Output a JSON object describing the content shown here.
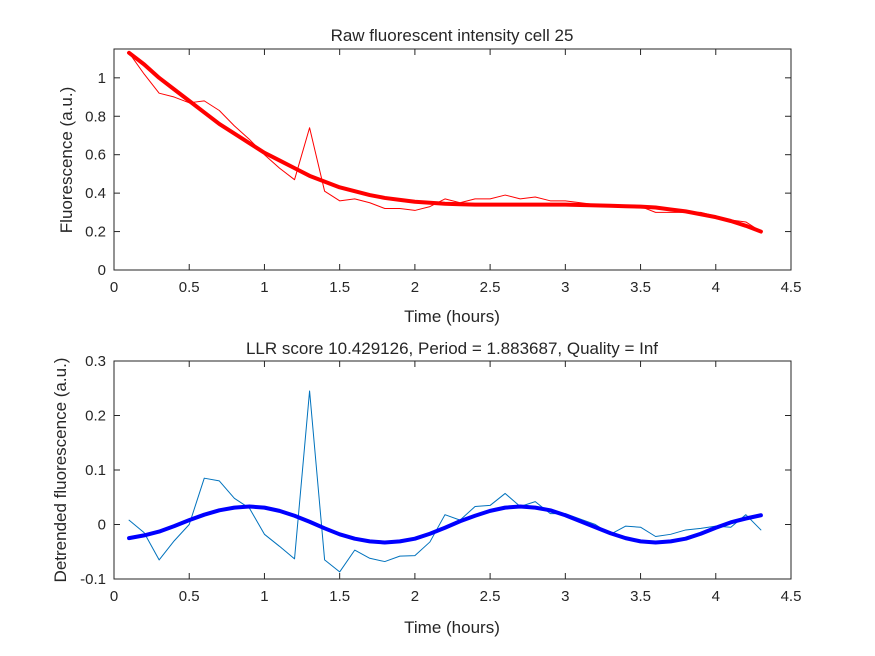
{
  "chart_data": [
    {
      "type": "line",
      "title": "Raw fluorescent intensity cell 25",
      "xlabel": "Time (hours)",
      "ylabel": "Fluorescence (a.u.)",
      "xlim": [
        0,
        4.5
      ],
      "ylim": [
        0,
        1.15
      ],
      "xticks": [
        "0",
        "0.5",
        "1",
        "1.5",
        "2",
        "2.5",
        "3",
        "3.5",
        "4",
        "4.5"
      ],
      "yticks": [
        "0",
        "0.2",
        "0.4",
        "0.6",
        "0.8",
        "1"
      ],
      "grid": false,
      "series": [
        {
          "color": "#ff0000",
          "line_width": "thin",
          "x": [
            0.1,
            0.2,
            0.3,
            0.4,
            0.5,
            0.6,
            0.7,
            0.8,
            0.9,
            1.0,
            1.1,
            1.2,
            1.3,
            1.4,
            1.5,
            1.6,
            1.7,
            1.8,
            1.9,
            2.0,
            2.1,
            2.2,
            2.3,
            2.4,
            2.5,
            2.6,
            2.7,
            2.8,
            2.9,
            3.0,
            3.1,
            3.2,
            3.3,
            3.4,
            3.5,
            3.6,
            3.7,
            3.8,
            3.9,
            4.0,
            4.1,
            4.2,
            4.3
          ],
          "y": [
            1.13,
            1.02,
            0.92,
            0.9,
            0.87,
            0.88,
            0.83,
            0.75,
            0.68,
            0.6,
            0.53,
            0.47,
            0.74,
            0.41,
            0.36,
            0.37,
            0.35,
            0.32,
            0.32,
            0.31,
            0.33,
            0.37,
            0.35,
            0.37,
            0.37,
            0.39,
            0.37,
            0.38,
            0.36,
            0.36,
            0.35,
            0.34,
            0.33,
            0.33,
            0.33,
            0.3,
            0.3,
            0.3,
            0.3,
            0.28,
            0.26,
            0.25,
            0.2
          ]
        },
        {
          "color": "#ff0000",
          "line_width": "thick",
          "x": [
            0.1,
            0.2,
            0.3,
            0.4,
            0.5,
            0.6,
            0.7,
            0.8,
            0.9,
            1.0,
            1.1,
            1.2,
            1.3,
            1.4,
            1.5,
            1.6,
            1.7,
            1.8,
            1.9,
            2.0,
            2.1,
            2.2,
            2.3,
            2.4,
            2.5,
            2.6,
            2.7,
            2.8,
            2.9,
            3.0,
            3.1,
            3.2,
            3.3,
            3.4,
            3.5,
            3.6,
            3.7,
            3.8,
            3.9,
            4.0,
            4.1,
            4.2,
            4.3
          ],
          "y": [
            1.13,
            1.07,
            1.0,
            0.94,
            0.88,
            0.82,
            0.76,
            0.71,
            0.66,
            0.61,
            0.57,
            0.53,
            0.49,
            0.46,
            0.43,
            0.41,
            0.39,
            0.375,
            0.365,
            0.355,
            0.35,
            0.345,
            0.342,
            0.34,
            0.34,
            0.34,
            0.34,
            0.34,
            0.34,
            0.34,
            0.338,
            0.336,
            0.334,
            0.332,
            0.33,
            0.325,
            0.315,
            0.305,
            0.29,
            0.275,
            0.255,
            0.23,
            0.2
          ]
        }
      ]
    },
    {
      "type": "line",
      "title": "LLR score 10.429126, Period = 1.883687, Quality = Inf",
      "xlabel": "Time (hours)",
      "ylabel": "Detrended fluorescence (a.u.)",
      "xlim": [
        0,
        4.5
      ],
      "ylim": [
        -0.1,
        0.3
      ],
      "xticks": [
        "0",
        "0.5",
        "1",
        "1.5",
        "2",
        "2.5",
        "3",
        "3.5",
        "4",
        "4.5"
      ],
      "yticks": [
        "-0.1",
        "0",
        "0.1",
        "0.2",
        "0.3"
      ],
      "grid": false,
      "series": [
        {
          "color": "#0072bd",
          "line_width": "thin",
          "x": [
            0.1,
            0.2,
            0.3,
            0.4,
            0.5,
            0.6,
            0.7,
            0.8,
            0.9,
            1.0,
            1.1,
            1.2,
            1.3,
            1.4,
            1.5,
            1.6,
            1.7,
            1.8,
            1.9,
            2.0,
            2.1,
            2.2,
            2.3,
            2.4,
            2.5,
            2.6,
            2.7,
            2.8,
            2.9,
            3.0,
            3.1,
            3.2,
            3.3,
            3.4,
            3.5,
            3.6,
            3.7,
            3.8,
            3.9,
            4.0,
            4.1,
            4.2,
            4.3
          ],
          "y": [
            0.008,
            -0.015,
            -0.065,
            -0.03,
            0.0,
            0.085,
            0.08,
            0.048,
            0.03,
            -0.018,
            -0.04,
            -0.063,
            0.245,
            -0.065,
            -0.087,
            -0.047,
            -0.062,
            -0.068,
            -0.058,
            -0.057,
            -0.032,
            0.018,
            0.008,
            0.033,
            0.035,
            0.057,
            0.033,
            0.042,
            0.02,
            0.02,
            0.01,
            0.0,
            -0.018,
            -0.003,
            -0.005,
            -0.022,
            -0.018,
            -0.01,
            -0.007,
            -0.003,
            -0.005,
            0.018,
            -0.01
          ]
        },
        {
          "color": "#0000ff",
          "line_width": "thick",
          "x": [
            0.1,
            0.2,
            0.3,
            0.4,
            0.5,
            0.6,
            0.7,
            0.8,
            0.9,
            1.0,
            1.1,
            1.2,
            1.3,
            1.4,
            1.5,
            1.6,
            1.7,
            1.8,
            1.9,
            2.0,
            2.1,
            2.2,
            2.3,
            2.4,
            2.5,
            2.6,
            2.7,
            2.8,
            2.9,
            3.0,
            3.1,
            3.2,
            3.3,
            3.4,
            3.5,
            3.6,
            3.7,
            3.8,
            3.9,
            4.0,
            4.1,
            4.2,
            4.3
          ],
          "y": [
            -0.025,
            -0.02,
            -0.013,
            -0.003,
            0.008,
            0.018,
            0.026,
            0.031,
            0.033,
            0.031,
            0.025,
            0.016,
            0.005,
            -0.007,
            -0.018,
            -0.026,
            -0.031,
            -0.033,
            -0.031,
            -0.026,
            -0.017,
            -0.006,
            0.006,
            0.016,
            0.025,
            0.031,
            0.033,
            0.031,
            0.026,
            0.017,
            0.006,
            -0.005,
            -0.016,
            -0.025,
            -0.031,
            -0.033,
            -0.031,
            -0.026,
            -0.017,
            -0.006,
            0.004,
            0.011,
            0.017
          ]
        }
      ]
    }
  ]
}
